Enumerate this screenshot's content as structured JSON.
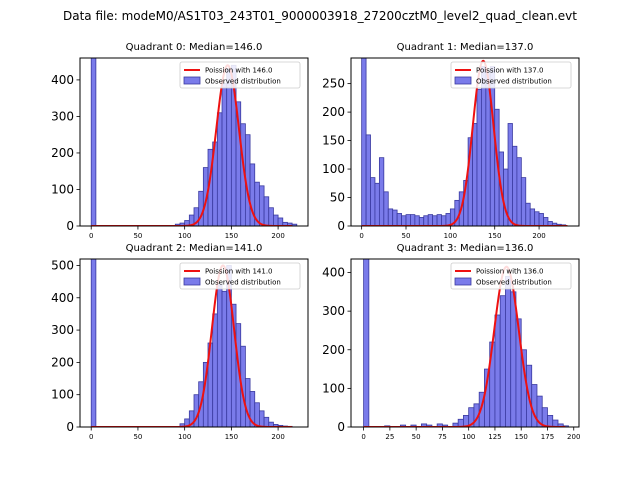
{
  "figure_title": "Data file: modeM0/AS1T03_243T01_9000003918_27200cztM0_level2_quad_clean.evt",
  "colors": {
    "bar_fill": "#7a7bea",
    "bar_edge": "#3a3aa0",
    "fit_line": "#ee1111",
    "axis": "#000000"
  },
  "chart_data": [
    {
      "type": "bar",
      "title": "Quadrant 0: Median=146.0",
      "legend": [
        "Poission with 146.0",
        "Observed distribution"
      ],
      "legend_position": "top-right",
      "xlim": [
        -12,
        232
      ],
      "ylim": [
        0,
        460
      ],
      "xticks": [
        0,
        50,
        100,
        150,
        200
      ],
      "yticks": [
        0,
        100,
        200,
        300,
        400
      ],
      "bin_width": 5,
      "bins": [
        0,
        90,
        95,
        100,
        105,
        110,
        115,
        120,
        125,
        130,
        135,
        140,
        145,
        150,
        155,
        160,
        165,
        170,
        175,
        180,
        185,
        190,
        195,
        200,
        205,
        210,
        215
      ],
      "counts": [
        460,
        5,
        8,
        15,
        30,
        50,
        95,
        160,
        210,
        230,
        310,
        390,
        430,
        440,
        340,
        280,
        250,
        170,
        120,
        110,
        80,
        50,
        30,
        22,
        10,
        8,
        5
      ],
      "fit_mean": 146,
      "fit_peak": 440,
      "fit_xmax": 215
    },
    {
      "type": "bar",
      "title": "Quadrant 1: Median=137.0",
      "legend": [
        "Poission with 137.0",
        "Observed distribution"
      ],
      "legend_position": "top-right",
      "xlim": [
        -12,
        245
      ],
      "ylim": [
        0,
        295
      ],
      "xticks": [
        0,
        50,
        100,
        150,
        200
      ],
      "yticks": [
        0,
        50,
        100,
        150,
        200,
        250
      ],
      "bin_width": 5,
      "bins": [
        0,
        5,
        10,
        15,
        20,
        25,
        30,
        35,
        40,
        45,
        50,
        55,
        60,
        65,
        70,
        75,
        80,
        85,
        90,
        95,
        100,
        105,
        110,
        115,
        120,
        125,
        130,
        135,
        140,
        145,
        150,
        155,
        160,
        165,
        170,
        175,
        180,
        185,
        190,
        195,
        200,
        205,
        210,
        215,
        220,
        225
      ],
      "counts": [
        295,
        160,
        85,
        75,
        120,
        60,
        30,
        28,
        22,
        18,
        20,
        20,
        18,
        15,
        18,
        20,
        18,
        20,
        18,
        22,
        30,
        45,
        60,
        80,
        155,
        180,
        240,
        280,
        270,
        280,
        205,
        130,
        100,
        180,
        140,
        120,
        85,
        40,
        30,
        25,
        22,
        15,
        8,
        5,
        3,
        2
      ],
      "fit_mean": 137,
      "fit_peak": 290,
      "fit_xmax": 232
    },
    {
      "type": "bar",
      "title": "Quadrant 2: Median=141.0",
      "legend": [
        "Poission with 141.0",
        "Observed distribution"
      ],
      "legend_position": "top-right",
      "xlim": [
        -12,
        232
      ],
      "ylim": [
        0,
        520
      ],
      "xticks": [
        0,
        50,
        100,
        150,
        200
      ],
      "yticks": [
        0,
        100,
        200,
        300,
        400,
        500
      ],
      "bin_width": 5,
      "bins": [
        0,
        95,
        100,
        105,
        110,
        115,
        120,
        125,
        130,
        135,
        140,
        145,
        150,
        155,
        160,
        165,
        170,
        175,
        180,
        185,
        190,
        195,
        200,
        205,
        210
      ],
      "counts": [
        520,
        10,
        25,
        50,
        100,
        140,
        200,
        260,
        350,
        440,
        420,
        500,
        380,
        320,
        250,
        150,
        110,
        75,
        50,
        30,
        15,
        8,
        5,
        3,
        2
      ],
      "fit_mean": 141,
      "fit_peak": 500,
      "fit_xmax": 215
    },
    {
      "type": "bar",
      "title": "Quadrant 3: Median=136.0",
      "legend": [
        "Poission with 136.0",
        "Observed distribution"
      ],
      "legend_position": "top-right",
      "xlim": [
        -12,
        205
      ],
      "ylim": [
        0,
        435
      ],
      "xticks": [
        0,
        25,
        50,
        75,
        100,
        125,
        150,
        175,
        200
      ],
      "yticks": [
        0,
        100,
        200,
        300,
        400
      ],
      "bin_width": 5,
      "bins": [
        0,
        20,
        35,
        45,
        55,
        60,
        70,
        75,
        85,
        90,
        95,
        100,
        105,
        110,
        115,
        120,
        125,
        130,
        135,
        140,
        145,
        150,
        155,
        160,
        165,
        170,
        175,
        180,
        185,
        190
      ],
      "counts": [
        435,
        3,
        5,
        5,
        8,
        5,
        8,
        5,
        10,
        20,
        30,
        50,
        60,
        90,
        150,
        220,
        290,
        340,
        390,
        350,
        280,
        200,
        160,
        110,
        80,
        50,
        30,
        18,
        8,
        3
      ],
      "fit_mean": 136,
      "fit_peak": 415,
      "fit_xmax": 192
    }
  ]
}
